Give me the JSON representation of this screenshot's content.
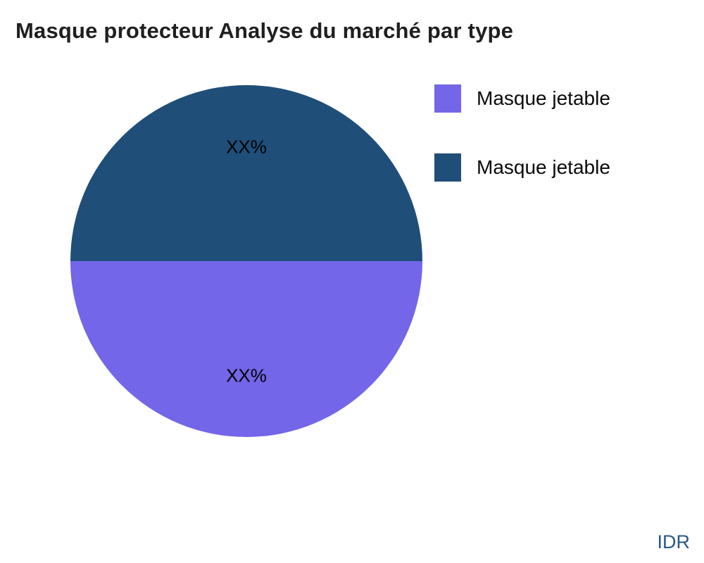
{
  "watermark": "IDR",
  "chart_data": {
    "type": "pie",
    "title": "Masque protecteur Analyse du marché par type",
    "legend_position": "right",
    "slices": [
      {
        "label": "Masque jetable",
        "value": 50,
        "display": "XX%",
        "color": "#7366E8"
      },
      {
        "label": "Masque jetable",
        "value": 50,
        "display": "XX%",
        "color": "#1F4E79"
      }
    ]
  }
}
